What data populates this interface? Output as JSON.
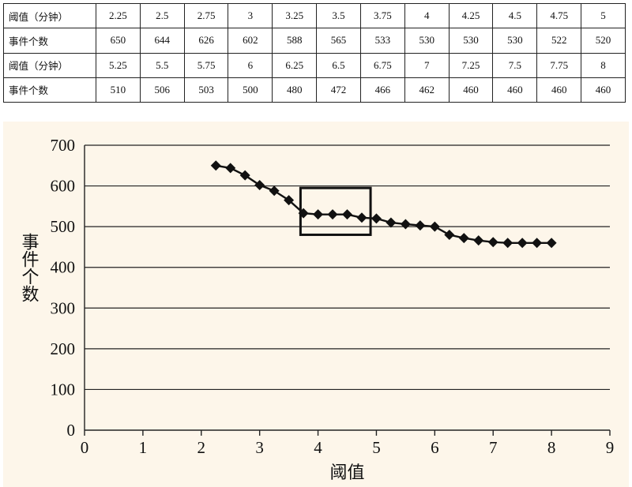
{
  "table": {
    "rows": [
      {
        "label": "阈值（分钟）",
        "values": [
          "2.25",
          "2.5",
          "2.75",
          "3",
          "3.25",
          "3.5",
          "3.75",
          "4",
          "4.25",
          "4.5",
          "4.75",
          "5"
        ]
      },
      {
        "label": "事件个数",
        "values": [
          "650",
          "644",
          "626",
          "602",
          "588",
          "565",
          "533",
          "530",
          "530",
          "530",
          "522",
          "520"
        ]
      },
      {
        "label": "阈值（分钟）",
        "values": [
          "5.25",
          "5.5",
          "5.75",
          "6",
          "6.25",
          "6.5",
          "6.75",
          "7",
          "7.25",
          "7.5",
          "7.75",
          "8"
        ]
      },
      {
        "label": "事件个数",
        "values": [
          "510",
          "506",
          "503",
          "500",
          "480",
          "472",
          "466",
          "462",
          "460",
          "460",
          "460",
          "460"
        ]
      }
    ]
  },
  "chart_data": {
    "type": "line",
    "x": [
      2.25,
      2.5,
      2.75,
      3,
      3.25,
      3.5,
      3.75,
      4,
      4.25,
      4.5,
      4.75,
      5,
      5.25,
      5.5,
      5.75,
      6,
      6.25,
      6.5,
      6.75,
      7,
      7.25,
      7.5,
      7.75,
      8
    ],
    "series": [
      {
        "values": [
          650,
          644,
          626,
          602,
          588,
          565,
          533,
          530,
          530,
          530,
          522,
          520,
          510,
          506,
          503,
          500,
          480,
          472,
          466,
          462,
          460,
          460,
          460,
          460
        ],
        "marker": "diamond",
        "color": "#111111"
      }
    ],
    "title": "",
    "xlabel": "阈值",
    "ylabel": "事件个数",
    "xlim": [
      0,
      9
    ],
    "ylim": [
      0,
      700
    ],
    "xticks": [
      "0",
      "1",
      "2",
      "3",
      "4",
      "5",
      "6",
      "7",
      "8",
      "9"
    ],
    "yticks": [
      "0",
      "100",
      "200",
      "300",
      "400",
      "500",
      "600",
      "700"
    ],
    "grid": "horizontal",
    "highlight_box": {
      "x": [
        3.7,
        4.9
      ],
      "y": [
        480,
        595
      ]
    }
  }
}
